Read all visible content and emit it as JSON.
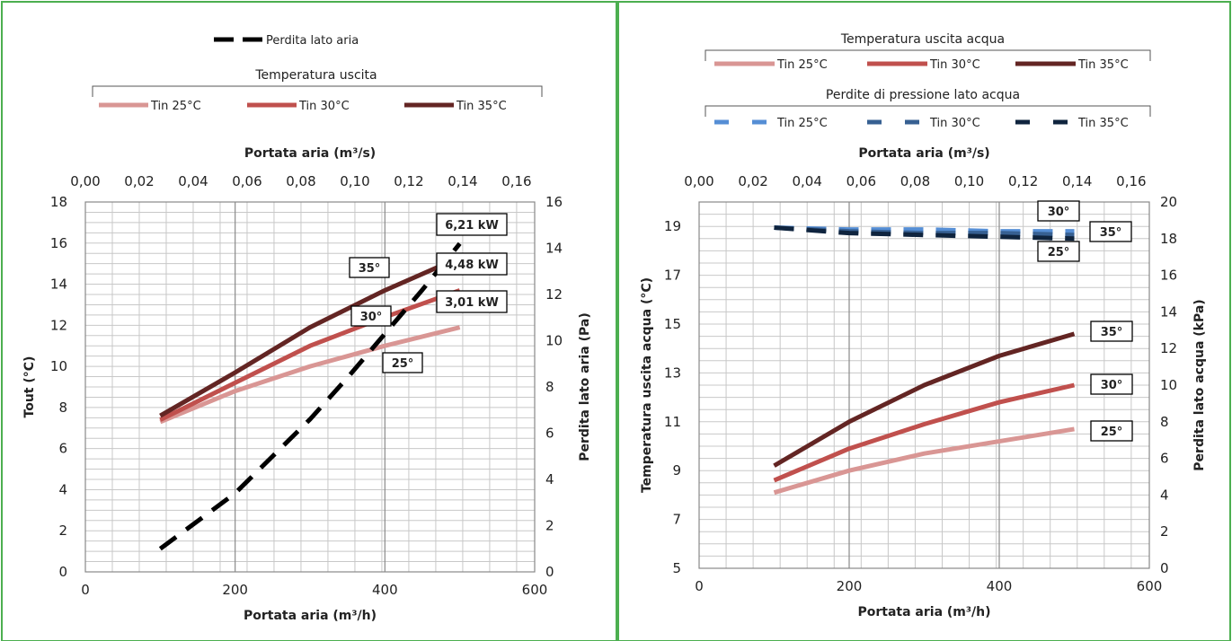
{
  "chart_data": [
    {
      "type": "line",
      "legend_top": {
        "label": "Perdita lato aria"
      },
      "legend_temp": {
        "title": "Temperatura uscita",
        "entries": [
          "Tin 25°C",
          "Tin 30°C",
          "Tin 35°C"
        ]
      },
      "axes": {
        "x_bottom": {
          "label": "Portata aria (m³/h)",
          "range": [
            0,
            600
          ],
          "ticks": [
            "0",
            "200",
            "400",
            "600"
          ]
        },
        "x_top": {
          "label": "Portata aria (m³/s)",
          "range": [
            0,
            0.1667
          ],
          "ticks": [
            "0,00",
            "0,02",
            "0,04",
            "0,06",
            "0,08",
            "0,10",
            "0,12",
            "0,14",
            "0,16"
          ]
        },
        "y_left": {
          "label": "Tout (°C)",
          "range": [
            0,
            18
          ],
          "ticks": [
            "0",
            "2",
            "4",
            "6",
            "8",
            "10",
            "12",
            "14",
            "16",
            "18"
          ]
        },
        "y_right": {
          "label": "Perdita lato aria (Pa)",
          "range": [
            0,
            16
          ],
          "ticks": [
            "0",
            "2",
            "4",
            "6",
            "8",
            "10",
            "12",
            "14",
            "16"
          ]
        }
      },
      "series": [
        {
          "name": "Tin 25°C",
          "color": "#d99694",
          "axis": "left",
          "x": [
            100,
            200,
            300,
            400,
            500
          ],
          "y": [
            7.3,
            8.8,
            10.0,
            11.0,
            11.9
          ]
        },
        {
          "name": "Tin 30°C",
          "color": "#c0504d",
          "axis": "left",
          "x": [
            100,
            200,
            300,
            400,
            500
          ],
          "y": [
            7.4,
            9.2,
            11.0,
            12.4,
            13.7
          ]
        },
        {
          "name": "Tin 35°C",
          "color": "#632523",
          "axis": "left",
          "x": [
            100,
            200,
            300,
            400,
            500
          ],
          "y": [
            7.6,
            9.7,
            11.9,
            13.7,
            15.3
          ]
        },
        {
          "name": "Perdita lato aria",
          "color": "#000000",
          "axis": "right",
          "dashed": true,
          "x": [
            100,
            150,
            200,
            250,
            300,
            350,
            400,
            450,
            500
          ],
          "y": [
            1.0,
            2.2,
            3.4,
            5.0,
            6.6,
            8.4,
            10.3,
            12.2,
            14.2
          ]
        }
      ],
      "curve_labels": [
        "35°",
        "30°",
        "25°"
      ],
      "power_labels": [
        "6,21 kW",
        "4,48 kW",
        "3,01 kW"
      ]
    },
    {
      "type": "line",
      "legend_temp": {
        "title": "Temperatura uscita acqua",
        "entries": [
          "Tin 25°C",
          "Tin 30°C",
          "Tin 35°C"
        ]
      },
      "legend_press": {
        "title": "Perdite di pressione lato acqua",
        "entries": [
          "Tin 25°C",
          "Tin 30°C",
          "Tin 35°C"
        ]
      },
      "axes": {
        "x_bottom": {
          "label": "Portata aria (m³/h)",
          "range": [
            0,
            600
          ],
          "ticks": [
            "0",
            "200",
            "400",
            "600"
          ]
        },
        "x_top": {
          "label": "Portata aria (m³/s)",
          "range": [
            0,
            0.1667
          ],
          "ticks": [
            "0,00",
            "0,02",
            "0,04",
            "0,06",
            "0,08",
            "0,10",
            "0,12",
            "0,14",
            "0,16"
          ]
        },
        "y_left": {
          "label": "Temperatura uscita acqua (°C)",
          "range": [
            5,
            20
          ],
          "ticks": [
            "5",
            "7",
            "9",
            "11",
            "13",
            "15",
            "17",
            "19"
          ]
        },
        "y_right": {
          "label": "Perdita lato acqua (kPa)",
          "range": [
            0,
            20
          ],
          "ticks": [
            "0",
            "2",
            "4",
            "6",
            "8",
            "10",
            "12",
            "14",
            "16",
            "18",
            "20"
          ]
        }
      },
      "series": [
        {
          "name": "Tin 25°C",
          "color": "#d99694",
          "axis": "left",
          "x": [
            100,
            200,
            300,
            400,
            500
          ],
          "y": [
            8.1,
            9.0,
            9.7,
            10.2,
            10.7
          ]
        },
        {
          "name": "Tin 30°C",
          "color": "#c0504d",
          "axis": "left",
          "x": [
            100,
            200,
            300,
            400,
            500
          ],
          "y": [
            8.6,
            9.9,
            10.9,
            11.8,
            12.5
          ]
        },
        {
          "name": "Tin 35°C",
          "color": "#632523",
          "axis": "left",
          "x": [
            100,
            200,
            300,
            400,
            500
          ],
          "y": [
            9.2,
            11.0,
            12.5,
            13.7,
            14.6
          ]
        },
        {
          "name": "Tin 25°C",
          "color": "#558ed5",
          "axis": "right",
          "dashed": true,
          "x": [
            100,
            200,
            300,
            400,
            500
          ],
          "y": [
            18.6,
            18.5,
            18.5,
            18.4,
            18.4
          ]
        },
        {
          "name": "Tin 30°C",
          "color": "#376092",
          "axis": "right",
          "dashed": true,
          "x": [
            100,
            200,
            300,
            400,
            500
          ],
          "y": [
            18.6,
            18.4,
            18.3,
            18.3,
            18.2
          ]
        },
        {
          "name": "Tin 35°C",
          "color": "#0f243e",
          "axis": "right",
          "dashed": true,
          "x": [
            100,
            200,
            300,
            400,
            500
          ],
          "y": [
            18.6,
            18.3,
            18.2,
            18.1,
            18.0
          ]
        }
      ],
      "curve_labels": [
        "30°",
        "35°",
        "25°",
        "35°",
        "30°",
        "25°"
      ]
    }
  ]
}
